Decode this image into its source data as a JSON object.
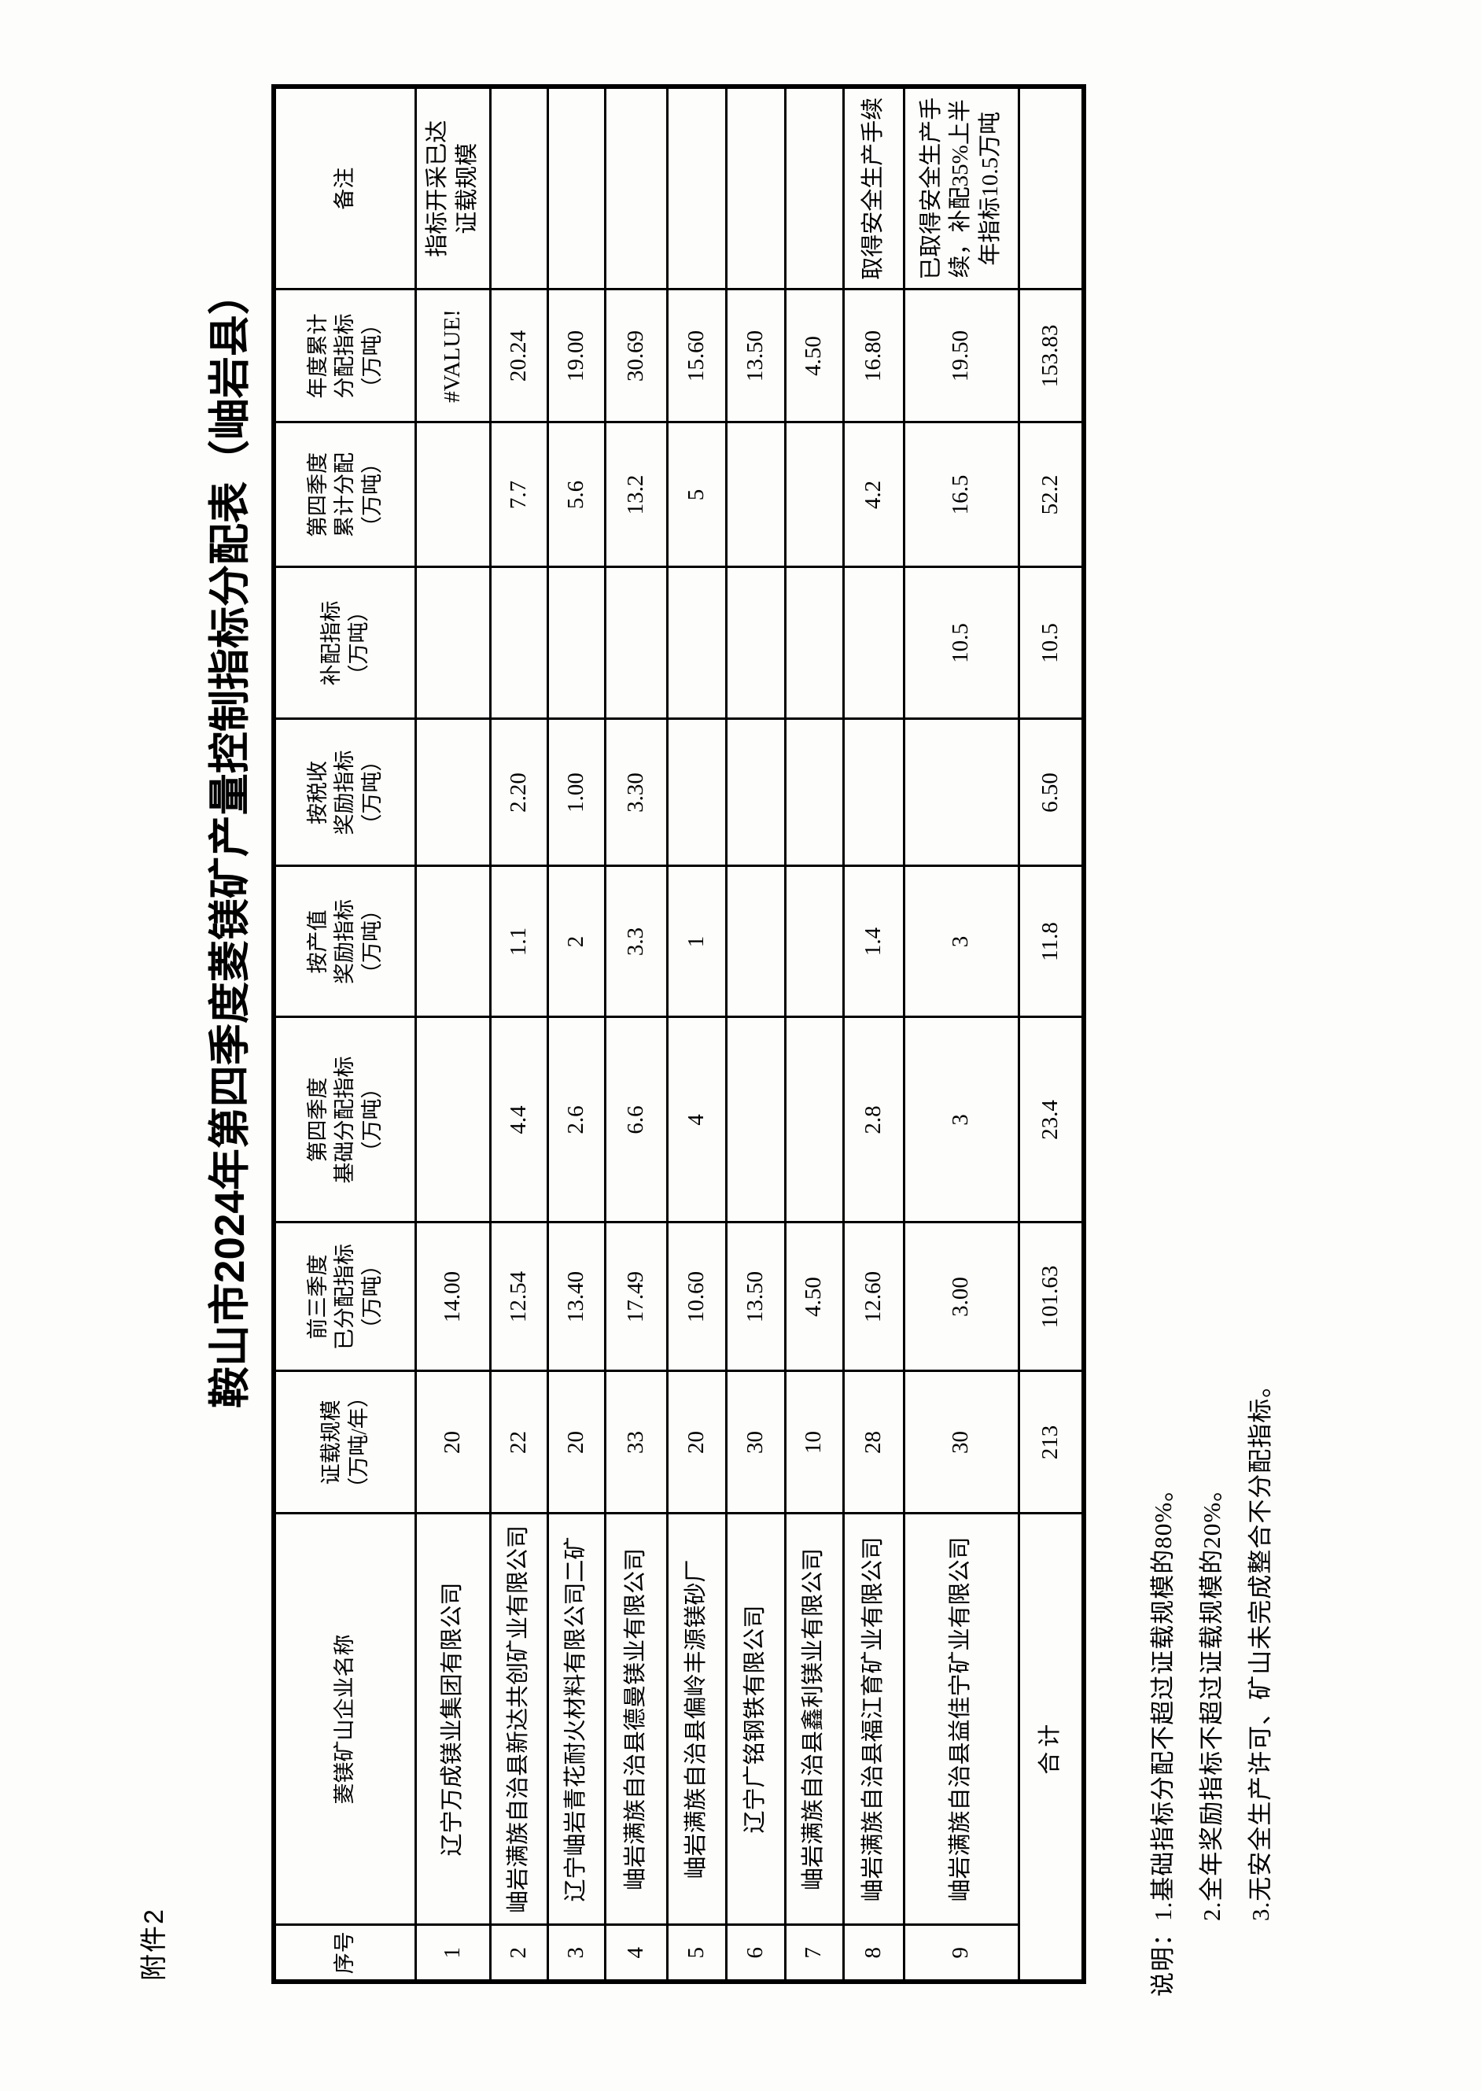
{
  "page": {
    "attachment_label": "附件2",
    "title": "鞍山市2024年第四季度菱镁矿产量控制指标分配表（岫岩县）"
  },
  "table": {
    "headers": [
      "序号",
      "菱镁矿山企业名称",
      "证载规模\n（万吨/年）",
      "前三季度\n已分配指标\n（万吨）",
      "第四季度\n基础分配指标\n（万吨）",
      "按产值\n奖励指标\n（万吨）",
      "按税收\n奖励指标\n（万吨）",
      "补配指标\n（万吨）",
      "第四季度\n累计分配\n（万吨）",
      "年度累计\n分配指标\n（万吨）",
      "备注"
    ],
    "rows": [
      [
        "1",
        "辽宁万成镁业集团有限公司",
        "20",
        "14.00",
        "",
        "",
        "",
        "",
        "",
        "#VALUE!",
        "指标开采已达\n证载规模"
      ],
      [
        "2",
        "岫岩满族自治县新达共创矿业有限公司",
        "22",
        "12.54",
        "4.4",
        "1.1",
        "2.20",
        "",
        "7.7",
        "20.24",
        ""
      ],
      [
        "3",
        "辽宁岫岩青花耐火材料有限公司二矿",
        "20",
        "13.40",
        "2.6",
        "2",
        "1.00",
        "",
        "5.6",
        "19.00",
        ""
      ],
      [
        "4",
        "岫岩满族自治县德曼镁业有限公司",
        "33",
        "17.49",
        "6.6",
        "3.3",
        "3.30",
        "",
        "13.2",
        "30.69",
        ""
      ],
      [
        "5",
        "岫岩满族自治县偏岭丰源镁砂厂",
        "20",
        "10.60",
        "4",
        "1",
        "",
        "",
        "5",
        "15.60",
        ""
      ],
      [
        "6",
        "辽宁广铭钢铁有限公司",
        "30",
        "13.50",
        "",
        "",
        "",
        "",
        "",
        "13.50",
        ""
      ],
      [
        "7",
        "岫岩满族自治县鑫利镁业有限公司",
        "10",
        "4.50",
        "",
        "",
        "",
        "",
        "",
        "4.50",
        ""
      ],
      [
        "8",
        "岫岩满族自治县福江育矿业有限公司",
        "28",
        "12.60",
        "2.8",
        "1.4",
        "",
        "",
        "4.2",
        "16.80",
        "取得安全生产手续"
      ],
      [
        "9",
        "岫岩满族自治县益佳宁矿业有限公司",
        "30",
        "3.00",
        "3",
        "3",
        "",
        "10.5",
        "16.5",
        "19.50",
        "已取得安全生产手\n续，补配35%上半\n年指标10.5万吨"
      ]
    ],
    "total_row": {
      "label": "合计",
      "values": [
        "213",
        "101.63",
        "23.4",
        "11.8",
        "6.50",
        "10.5",
        "52.2",
        "153.83",
        ""
      ]
    }
  },
  "notes": {
    "prefix": "说明：",
    "items": [
      "1.基础指标分配不超过证载规模的80%。",
      "2.全年奖励指标不超过证载规模的20%。",
      "3.无安全生产许可、矿山未完成整合不分配指标。"
    ]
  },
  "colors": {
    "text": "#000000",
    "border": "#000000",
    "background": "#fdfdfb"
  }
}
